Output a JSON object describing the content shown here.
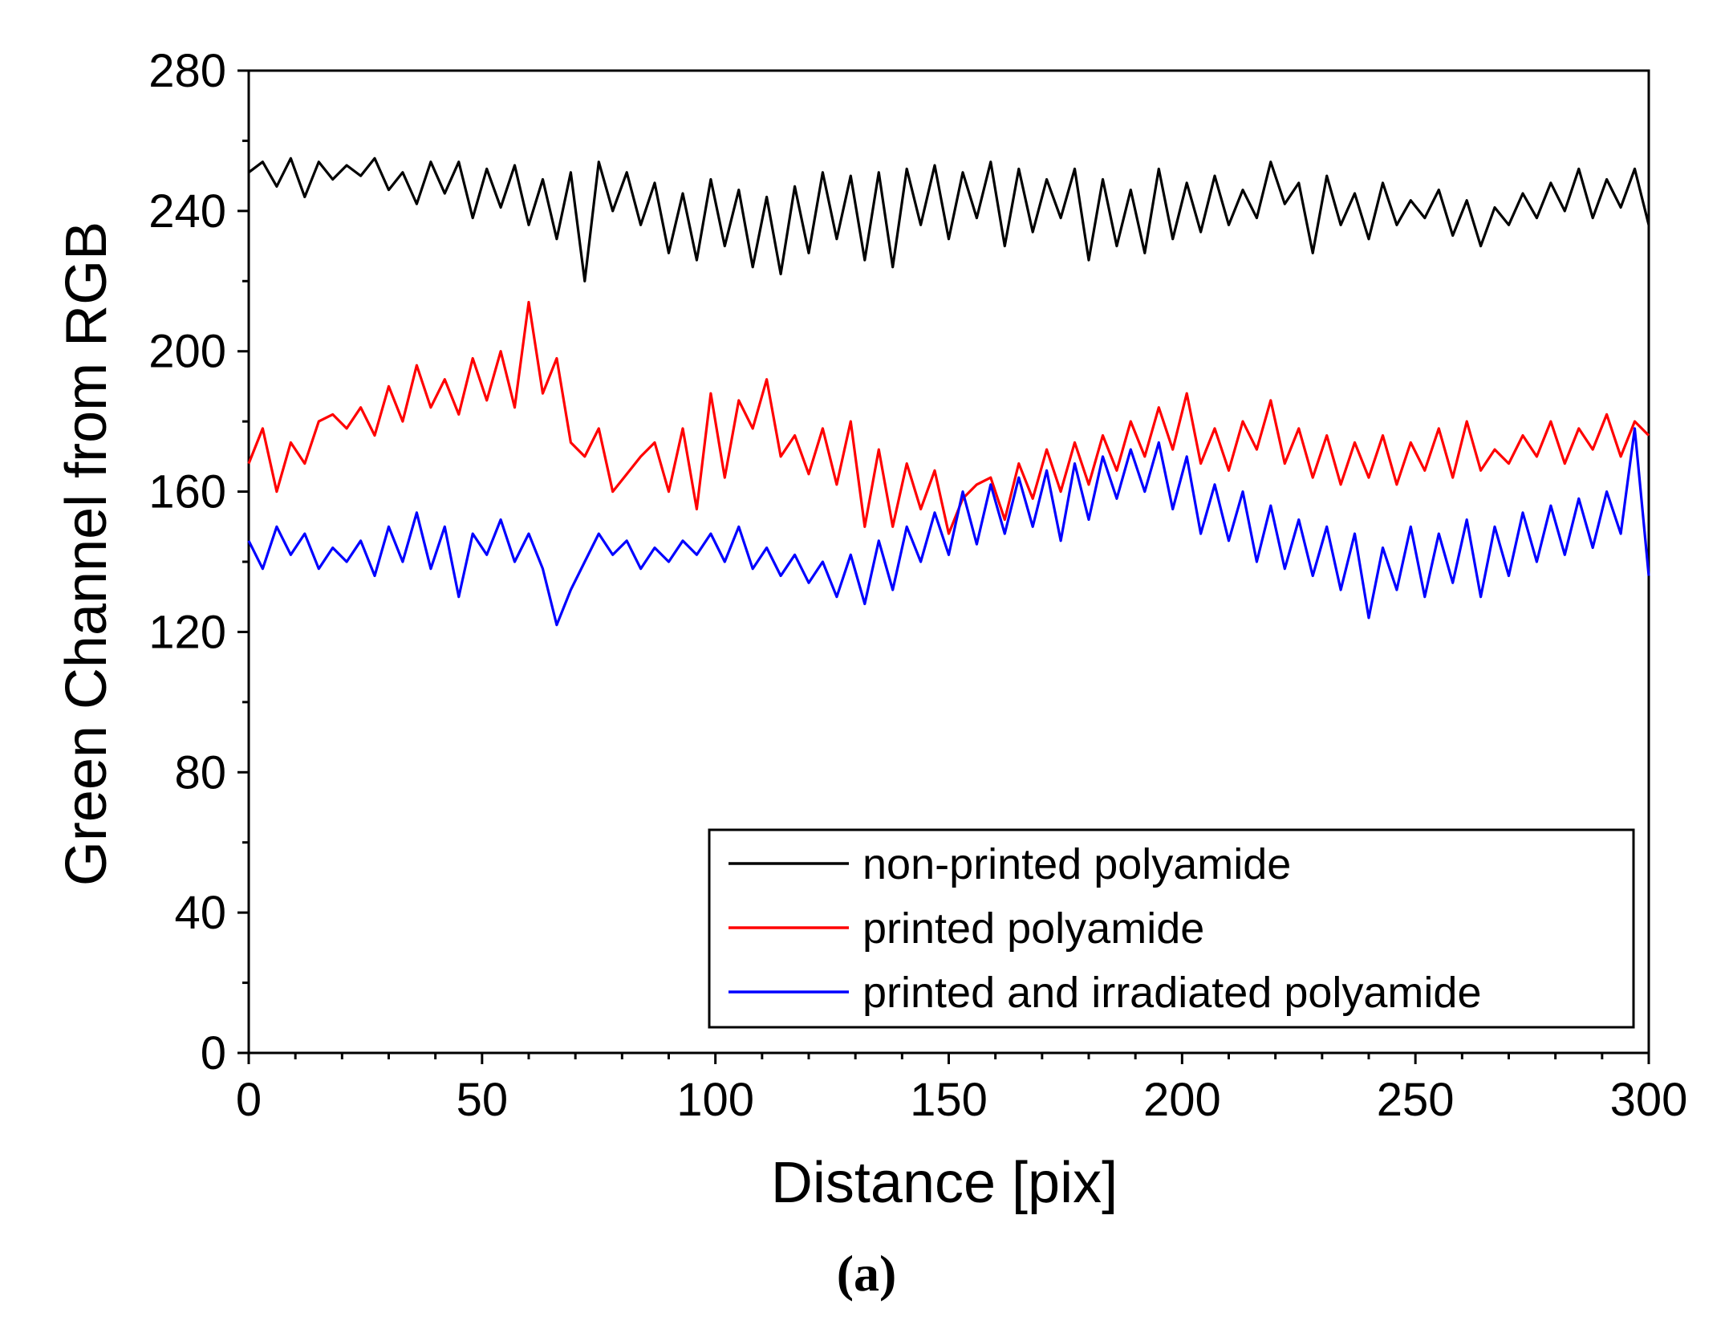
{
  "chart_data": {
    "type": "line",
    "xlabel": "Distance [pix]",
    "ylabel": "Green Channel from RGB",
    "xlim": [
      0,
      300
    ],
    "ylim": [
      0,
      280
    ],
    "xticks": [
      0,
      50,
      100,
      150,
      200,
      250,
      300
    ],
    "yticks": [
      0,
      40,
      80,
      120,
      160,
      200,
      240,
      280
    ],
    "xtick_labels": [
      "0",
      "50",
      "100",
      "150",
      "200",
      "250",
      "300"
    ],
    "ytick_labels": [
      "0",
      "40",
      "80",
      "120",
      "160",
      "200",
      "240",
      "280"
    ],
    "grid": false,
    "legend_position": "bottom-right",
    "caption": "(a)",
    "x": [
      0,
      3,
      6,
      9,
      12,
      15,
      18,
      21,
      24,
      27,
      30,
      33,
      36,
      39,
      42,
      45,
      48,
      51,
      54,
      57,
      60,
      63,
      66,
      69,
      72,
      75,
      78,
      81,
      84,
      87,
      90,
      93,
      96,
      99,
      102,
      105,
      108,
      111,
      114,
      117,
      120,
      123,
      126,
      129,
      132,
      135,
      138,
      141,
      144,
      147,
      150,
      153,
      156,
      159,
      162,
      165,
      168,
      171,
      174,
      177,
      180,
      183,
      186,
      189,
      192,
      195,
      198,
      201,
      204,
      207,
      210,
      213,
      216,
      219,
      222,
      225,
      228,
      231,
      234,
      237,
      240,
      243,
      246,
      249,
      252,
      255,
      258,
      261,
      264,
      267,
      270,
      273,
      276,
      279,
      282,
      285,
      288,
      291,
      294,
      297,
      300
    ],
    "series": [
      {
        "name": "non-printed polyamide",
        "color": "#000000",
        "values": [
          251,
          254,
          247,
          255,
          244,
          254,
          249,
          253,
          250,
          255,
          246,
          251,
          242,
          254,
          245,
          254,
          238,
          252,
          241,
          253,
          236,
          249,
          232,
          251,
          220,
          254,
          240,
          251,
          236,
          248,
          228,
          245,
          226,
          249,
          230,
          246,
          224,
          244,
          222,
          247,
          228,
          251,
          232,
          250,
          226,
          251,
          224,
          252,
          236,
          253,
          232,
          251,
          238,
          254,
          230,
          252,
          234,
          249,
          238,
          252,
          226,
          249,
          230,
          246,
          228,
          252,
          232,
          248,
          234,
          250,
          236,
          246,
          238,
          254,
          242,
          248,
          228,
          250,
          236,
          245,
          232,
          248,
          236,
          243,
          238,
          246,
          233,
          243,
          230,
          241,
          236,
          245,
          238,
          248,
          240,
          252,
          238,
          249,
          241,
          252,
          236
        ]
      },
      {
        "name": "printed polyamide",
        "color": "#ff0000",
        "values": [
          168,
          178,
          160,
          174,
          168,
          180,
          182,
          178,
          184,
          176,
          190,
          180,
          196,
          184,
          192,
          182,
          198,
          186,
          200,
          184,
          214,
          188,
          198,
          174,
          170,
          178,
          160,
          165,
          170,
          174,
          160,
          178,
          155,
          188,
          164,
          186,
          178,
          192,
          170,
          176,
          165,
          178,
          162,
          180,
          150,
          172,
          150,
          168,
          155,
          166,
          148,
          158,
          162,
          164,
          152,
          168,
          158,
          172,
          160,
          174,
          162,
          176,
          166,
          180,
          170,
          184,
          172,
          188,
          168,
          178,
          166,
          180,
          172,
          186,
          168,
          178,
          164,
          176,
          162,
          174,
          164,
          176,
          162,
          174,
          166,
          178,
          164,
          180,
          166,
          172,
          168,
          176,
          170,
          180,
          168,
          178,
          172,
          182,
          170,
          180,
          176
        ]
      },
      {
        "name": "printed and irradiated polyamide",
        "color": "#0000ff",
        "values": [
          146,
          138,
          150,
          142,
          148,
          138,
          144,
          140,
          146,
          136,
          150,
          140,
          154,
          138,
          150,
          130,
          148,
          142,
          152,
          140,
          148,
          138,
          122,
          132,
          140,
          148,
          142,
          146,
          138,
          144,
          140,
          146,
          142,
          148,
          140,
          150,
          138,
          144,
          136,
          142,
          134,
          140,
          130,
          142,
          128,
          146,
          132,
          150,
          140,
          154,
          142,
          160,
          145,
          162,
          148,
          164,
          150,
          166,
          146,
          168,
          152,
          170,
          158,
          172,
          160,
          174,
          155,
          170,
          148,
          162,
          146,
          160,
          140,
          156,
          138,
          152,
          136,
          150,
          132,
          148,
          124,
          144,
          132,
          150,
          130,
          148,
          134,
          152,
          130,
          150,
          136,
          154,
          140,
          156,
          142,
          158,
          144,
          160,
          148,
          178,
          136
        ]
      }
    ]
  }
}
